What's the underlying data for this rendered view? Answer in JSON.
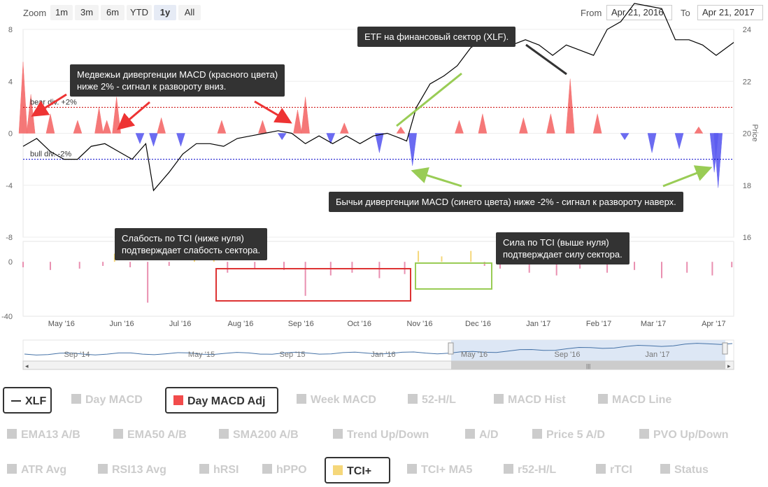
{
  "range_selector": {
    "zoom_label": "Zoom",
    "buttons": [
      "1m",
      "3m",
      "6m",
      "YTD",
      "1y",
      "All"
    ],
    "active": "1y",
    "from_label": "From",
    "from_value": "Apr 21, 2016",
    "to_label": "To",
    "to_value": "Apr 21, 2017"
  },
  "callouts": {
    "bear": "Медвежьи дивергенции MACD (красного цвета)\nниже 2% - сигнал к развороту вниз.",
    "etf": "ETF на финансовый сектор (XLF).",
    "bull": "Бычьи дивергенции MACD (синего цвета) ниже -2% - сигнал к развороту наверх.",
    "weak": "Слабость по TCI (ниже нуля)\nподтверждает слабость сектора.",
    "strong": "Сила по TCI (выше нуля)\nподтверждает силу сектора."
  },
  "chart_data": {
    "type": "line",
    "top_panel": {
      "left_axis_ticks": [
        "8",
        "4",
        "0",
        "-4",
        "-8"
      ],
      "right_axis_ticks": [
        "24",
        "22",
        "20",
        "18",
        "16"
      ],
      "right_axis_label": "Price",
      "bear_line_label": "bear div. +2%",
      "bull_line_label": "bull div. -2%",
      "bear_level": 2,
      "bull_level": -2,
      "macd_range": [
        -8,
        8
      ],
      "price_range": [
        16,
        24
      ],
      "xlf_price": [
        [
          "2016-04-21",
          19.5
        ],
        [
          "2016-04-28",
          19.8
        ],
        [
          "2016-05-05",
          19.3
        ],
        [
          "2016-05-12",
          19.0
        ],
        [
          "2016-05-19",
          19.0
        ],
        [
          "2016-05-26",
          19.5
        ],
        [
          "2016-06-02",
          19.6
        ],
        [
          "2016-06-09",
          19.3
        ],
        [
          "2016-06-16",
          19.0
        ],
        [
          "2016-06-23",
          19.6
        ],
        [
          "2016-06-27",
          17.8
        ],
        [
          "2016-07-05",
          18.5
        ],
        [
          "2016-07-12",
          19.2
        ],
        [
          "2016-07-19",
          19.6
        ],
        [
          "2016-07-26",
          19.6
        ],
        [
          "2016-08-02",
          19.5
        ],
        [
          "2016-08-09",
          19.8
        ],
        [
          "2016-08-16",
          19.9
        ],
        [
          "2016-08-23",
          20.0
        ],
        [
          "2016-08-30",
          20.1
        ],
        [
          "2016-09-06",
          20.0
        ],
        [
          "2016-09-13",
          19.6
        ],
        [
          "2016-09-20",
          19.9
        ],
        [
          "2016-09-27",
          19.6
        ],
        [
          "2016-10-04",
          19.9
        ],
        [
          "2016-10-11",
          19.6
        ],
        [
          "2016-10-18",
          19.9
        ],
        [
          "2016-10-25",
          20.0
        ],
        [
          "2016-11-01",
          19.8
        ],
        [
          "2016-11-04",
          19.7
        ],
        [
          "2016-11-09",
          21.0
        ],
        [
          "2016-11-16",
          21.9
        ],
        [
          "2016-11-23",
          22.2
        ],
        [
          "2016-11-30",
          22.6
        ],
        [
          "2016-12-07",
          23.3
        ],
        [
          "2016-12-14",
          23.6
        ],
        [
          "2016-12-21",
          23.6
        ],
        [
          "2016-12-28",
          23.4
        ],
        [
          "2017-01-04",
          23.6
        ],
        [
          "2017-01-11",
          23.4
        ],
        [
          "2017-01-18",
          23.0
        ],
        [
          "2017-01-25",
          23.4
        ],
        [
          "2017-02-01",
          23.2
        ],
        [
          "2017-02-08",
          23.0
        ],
        [
          "2017-02-15",
          24.0
        ],
        [
          "2017-02-22",
          24.3
        ],
        [
          "2017-03-01",
          25.0
        ],
        [
          "2017-03-08",
          24.9
        ],
        [
          "2017-03-15",
          24.8
        ],
        [
          "2017-03-22",
          23.6
        ],
        [
          "2017-03-29",
          23.6
        ],
        [
          "2017-04-05",
          23.4
        ],
        [
          "2017-04-12",
          23.0
        ],
        [
          "2017-04-21",
          23.5
        ]
      ],
      "day_macd_adj": [
        [
          "2016-04-21",
          5.5
        ],
        [
          "2016-04-25",
          3.0
        ],
        [
          "2016-05-05",
          1.5
        ],
        [
          "2016-05-19",
          1.0
        ],
        [
          "2016-05-30",
          2.0
        ],
        [
          "2016-06-03",
          1.0
        ],
        [
          "2016-06-08",
          2.8
        ],
        [
          "2016-06-20",
          -0.8
        ],
        [
          "2016-06-27",
          -1.0
        ],
        [
          "2016-07-01",
          1.2
        ],
        [
          "2016-07-11",
          -1.0
        ],
        [
          "2016-08-01",
          1.0
        ],
        [
          "2016-08-22",
          1.0
        ],
        [
          "2016-09-01",
          -0.5
        ],
        [
          "2016-09-09",
          1.8
        ],
        [
          "2016-09-13",
          2.8
        ],
        [
          "2016-09-26",
          -0.8
        ],
        [
          "2016-10-03",
          0.8
        ],
        [
          "2016-10-21",
          -1.5
        ],
        [
          "2016-11-01",
          0.5
        ],
        [
          "2016-11-07",
          -2.5
        ],
        [
          "2016-12-01",
          1.0
        ],
        [
          "2016-12-13",
          1.5
        ],
        [
          "2017-01-03",
          1.2
        ],
        [
          "2017-01-17",
          1.5
        ],
        [
          "2017-01-27",
          4.2
        ],
        [
          "2017-02-10",
          1.5
        ],
        [
          "2017-02-24",
          -0.5
        ],
        [
          "2017-03-10",
          -1.5
        ],
        [
          "2017-03-24",
          -1.2
        ],
        [
          "2017-04-03",
          0.5
        ],
        [
          "2017-04-11",
          -3.0
        ],
        [
          "2017-04-13",
          -4.2
        ]
      ]
    },
    "bottom_panel": {
      "left_axis_ticks": [
        "0",
        "-40"
      ],
      "tci_range": [
        -40,
        15
      ],
      "tci_plus": [
        [
          "2016-04-21",
          -4
        ],
        [
          "2016-05-05",
          -6
        ],
        [
          "2016-05-20",
          -5
        ],
        [
          "2016-06-01",
          -3
        ],
        [
          "2016-06-07",
          6
        ],
        [
          "2016-06-15",
          -4
        ],
        [
          "2016-06-24",
          -30
        ],
        [
          "2016-07-05",
          -3
        ],
        [
          "2016-07-18",
          4
        ],
        [
          "2016-07-28",
          3
        ],
        [
          "2016-08-04",
          -8
        ],
        [
          "2016-08-18",
          -5
        ],
        [
          "2016-09-02",
          -6
        ],
        [
          "2016-09-13",
          -25
        ],
        [
          "2016-09-26",
          -10
        ],
        [
          "2016-10-07",
          -8
        ],
        [
          "2016-10-21",
          -12
        ],
        [
          "2016-11-03",
          -9
        ],
        [
          "2016-11-10",
          8
        ],
        [
          "2016-11-22",
          4
        ],
        [
          "2016-12-07",
          8
        ],
        [
          "2016-12-14",
          -3
        ],
        [
          "2016-12-22",
          -5
        ],
        [
          "2017-01-06",
          -8
        ],
        [
          "2017-01-20",
          -10
        ],
        [
          "2017-02-01",
          -5
        ],
        [
          "2017-02-15",
          -8
        ],
        [
          "2017-03-01",
          -6
        ],
        [
          "2017-03-15",
          -12
        ],
        [
          "2017-03-28",
          -8
        ],
        [
          "2017-04-10",
          -10
        ],
        [
          "2017-04-20",
          -4
        ]
      ]
    },
    "x_ticks": [
      "May '16",
      "Jun '16",
      "Jul '16",
      "Aug '16",
      "Sep '16",
      "Oct '16",
      "Nov '16",
      "Dec '16",
      "Jan '17",
      "Feb '17",
      "Mar '17",
      "Apr '17"
    ],
    "navigator_ticks": [
      "Sep '14",
      "May '15",
      "Sep '15",
      "Jan '16",
      "May '16",
      "Sep '16",
      "Jan '17"
    ]
  },
  "legend": [
    {
      "label": "XLF",
      "on": true,
      "kind": "line"
    },
    {
      "label": "Day MACD",
      "on": false
    },
    {
      "label": "Day MACD Adj",
      "on": true,
      "color": "#f24b4b"
    },
    {
      "label": "Week MACD",
      "on": false
    },
    {
      "label": "52-H/L",
      "on": false
    },
    {
      "label": "MACD Hist",
      "on": false
    },
    {
      "label": "MACD Line",
      "on": false
    },
    {
      "label": "EMA13 A/B",
      "on": false
    },
    {
      "label": "EMA50 A/B",
      "on": false
    },
    {
      "label": "SMA200 A/B",
      "on": false
    },
    {
      "label": "Trend Up/Down",
      "on": false
    },
    {
      "label": "A/D",
      "on": false
    },
    {
      "label": "Price 5 A/D",
      "on": false
    },
    {
      "label": "PVO Up/Down",
      "on": false
    },
    {
      "label": "ATR Avg",
      "on": false
    },
    {
      "label": "RSI13 Avg",
      "on": false
    },
    {
      "label": "hRSI",
      "on": false
    },
    {
      "label": "hPPO",
      "on": false
    },
    {
      "label": "TCI+",
      "on": true,
      "color": "#f5d77a"
    },
    {
      "label": "TCI+ MA5",
      "on": false
    },
    {
      "label": "r52-H/L",
      "on": false
    },
    {
      "label": "rTCI",
      "on": false
    },
    {
      "label": "Status",
      "on": false
    }
  ]
}
